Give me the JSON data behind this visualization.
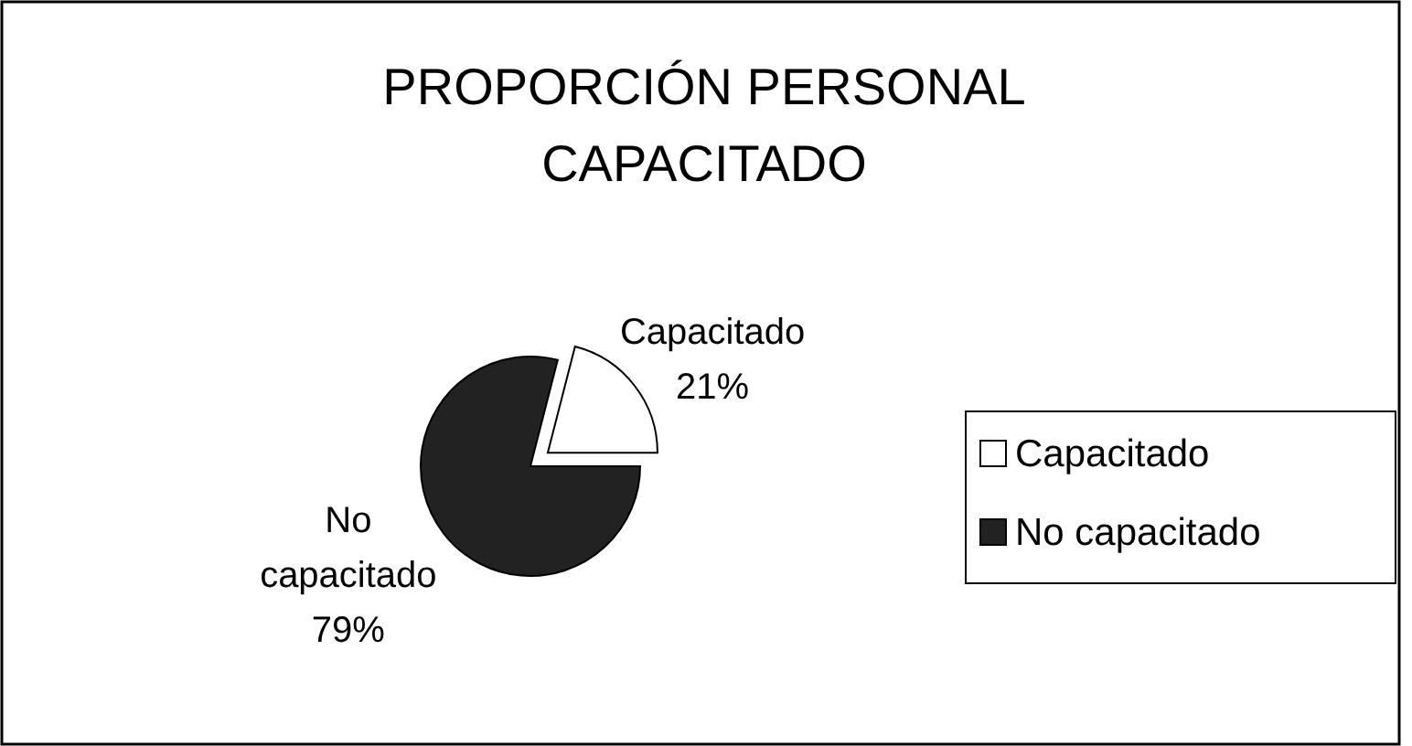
{
  "chart_data": {
    "type": "pie",
    "title": "PROPORCIÓN PERSONAL CAPACITADO",
    "categories": [
      "Capacitado",
      "No capacitado"
    ],
    "values": [
      21,
      79
    ],
    "colors": [
      "#ffffff",
      "#222222"
    ],
    "value_labels": [
      "21%",
      "79%"
    ],
    "legend": "right"
  }
}
